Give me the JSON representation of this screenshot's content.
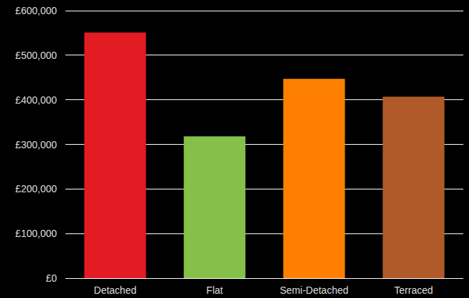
{
  "chart_data": {
    "type": "bar",
    "categories": [
      "Detached",
      "Flat",
      "Semi-Detached",
      "Terraced"
    ],
    "values": [
      551000,
      318000,
      447000,
      407000
    ],
    "colors": [
      "#e31b23",
      "#86c04a",
      "#ff8000",
      "#b05a2a"
    ],
    "ylim": [
      0,
      600000
    ],
    "yticks": [
      {
        "value": 0,
        "label": "£0"
      },
      {
        "value": 100000,
        "label": "£100,000"
      },
      {
        "value": 200000,
        "label": "£200,000"
      },
      {
        "value": 300000,
        "label": "£300,000"
      },
      {
        "value": 400000,
        "label": "£400,000"
      },
      {
        "value": 500000,
        "label": "£500,000"
      },
      {
        "value": 600000,
        "label": "£600,000"
      }
    ],
    "grid": true
  }
}
